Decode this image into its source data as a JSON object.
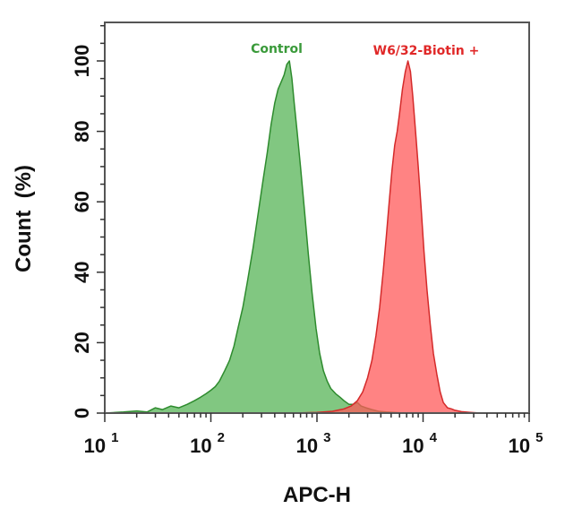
{
  "chart_data": {
    "type": "area",
    "title": "",
    "xlabel": "APC-H",
    "ylabel": "Count  (%)",
    "xscale": "log",
    "xlim": [
      10,
      100000
    ],
    "ylim": [
      0,
      110
    ],
    "grid": false,
    "legend_position": "inline-above-peaks",
    "x_ticks": [
      {
        "base": "10",
        "exp": "1",
        "value": 10
      },
      {
        "base": "10",
        "exp": "2",
        "value": 100
      },
      {
        "base": "10",
        "exp": "3",
        "value": 1000
      },
      {
        "base": "10",
        "exp": "4",
        "value": 10000
      },
      {
        "base": "10",
        "exp": "5",
        "value": 100000
      }
    ],
    "y_ticks": [
      0,
      20,
      40,
      60,
      80,
      100
    ],
    "series": [
      {
        "name": "Control",
        "color": "#2e8b2e",
        "fill": "#4caf4c",
        "fill_opacity": 0.7,
        "label_color": "#3a9a3a",
        "peak_x": 550,
        "points": [
          [
            10,
            0
          ],
          [
            15,
            0.3
          ],
          [
            20,
            0.6
          ],
          [
            25,
            0.3
          ],
          [
            30,
            1.5
          ],
          [
            35,
            1.0
          ],
          [
            42,
            2.0
          ],
          [
            50,
            1.5
          ],
          [
            60,
            2.5
          ],
          [
            70,
            3.5
          ],
          [
            80,
            4.5
          ],
          [
            90,
            5.5
          ],
          [
            100,
            6.5
          ],
          [
            110,
            7.5
          ],
          [
            120,
            9
          ],
          [
            135,
            12
          ],
          [
            150,
            15
          ],
          [
            165,
            19
          ],
          [
            180,
            24
          ],
          [
            200,
            30
          ],
          [
            220,
            37
          ],
          [
            250,
            47
          ],
          [
            280,
            57
          ],
          [
            310,
            66
          ],
          [
            340,
            74
          ],
          [
            370,
            82
          ],
          [
            400,
            88
          ],
          [
            430,
            92
          ],
          [
            460,
            94
          ],
          [
            490,
            96
          ],
          [
            520,
            99
          ],
          [
            550,
            100
          ],
          [
            580,
            95
          ],
          [
            610,
            88
          ],
          [
            650,
            80
          ],
          [
            700,
            70
          ],
          [
            760,
            58
          ],
          [
            830,
            45
          ],
          [
            900,
            34
          ],
          [
            980,
            24
          ],
          [
            1060,
            17
          ],
          [
            1150,
            12
          ],
          [
            1250,
            9
          ],
          [
            1350,
            7
          ],
          [
            1500,
            5.5
          ],
          [
            1650,
            4.5
          ],
          [
            1800,
            3.5
          ],
          [
            2000,
            2.5
          ],
          [
            2200,
            2.5
          ],
          [
            2400,
            3.0
          ],
          [
            2600,
            2.0
          ],
          [
            2900,
            1.5
          ],
          [
            3300,
            1.0
          ],
          [
            3800,
            0.5
          ],
          [
            4500,
            0.3
          ],
          [
            6000,
            0.1
          ],
          [
            10000,
            0
          ]
        ]
      },
      {
        "name": "W6/32-Biotin +",
        "color": "#d42a2a",
        "fill": "#ff5a5a",
        "fill_opacity": 0.75,
        "label_color": "#e02828",
        "peak_x": 7200,
        "points": [
          [
            600,
            0
          ],
          [
            1000,
            0.2
          ],
          [
            1400,
            0.5
          ],
          [
            1800,
            1.2
          ],
          [
            2100,
            2.0
          ],
          [
            2400,
            3.5
          ],
          [
            2700,
            6
          ],
          [
            3000,
            10
          ],
          [
            3300,
            15
          ],
          [
            3600,
            22
          ],
          [
            3900,
            30
          ],
          [
            4200,
            40
          ],
          [
            4500,
            50
          ],
          [
            4800,
            60
          ],
          [
            5100,
            69
          ],
          [
            5400,
            76
          ],
          [
            5700,
            80
          ],
          [
            6000,
            85
          ],
          [
            6400,
            92
          ],
          [
            6800,
            97
          ],
          [
            7200,
            100
          ],
          [
            7600,
            97
          ],
          [
            8000,
            90
          ],
          [
            8500,
            80
          ],
          [
            9000,
            70
          ],
          [
            9600,
            58
          ],
          [
            10200,
            46
          ],
          [
            10900,
            35
          ],
          [
            11700,
            25
          ],
          [
            12500,
            17
          ],
          [
            13500,
            11
          ],
          [
            14500,
            6
          ],
          [
            15500,
            3
          ],
          [
            17000,
            1.5
          ],
          [
            18500,
            1.2
          ],
          [
            20000,
            0.8
          ],
          [
            23000,
            0.4
          ],
          [
            28000,
            0.2
          ],
          [
            35000,
            0
          ]
        ]
      }
    ]
  }
}
